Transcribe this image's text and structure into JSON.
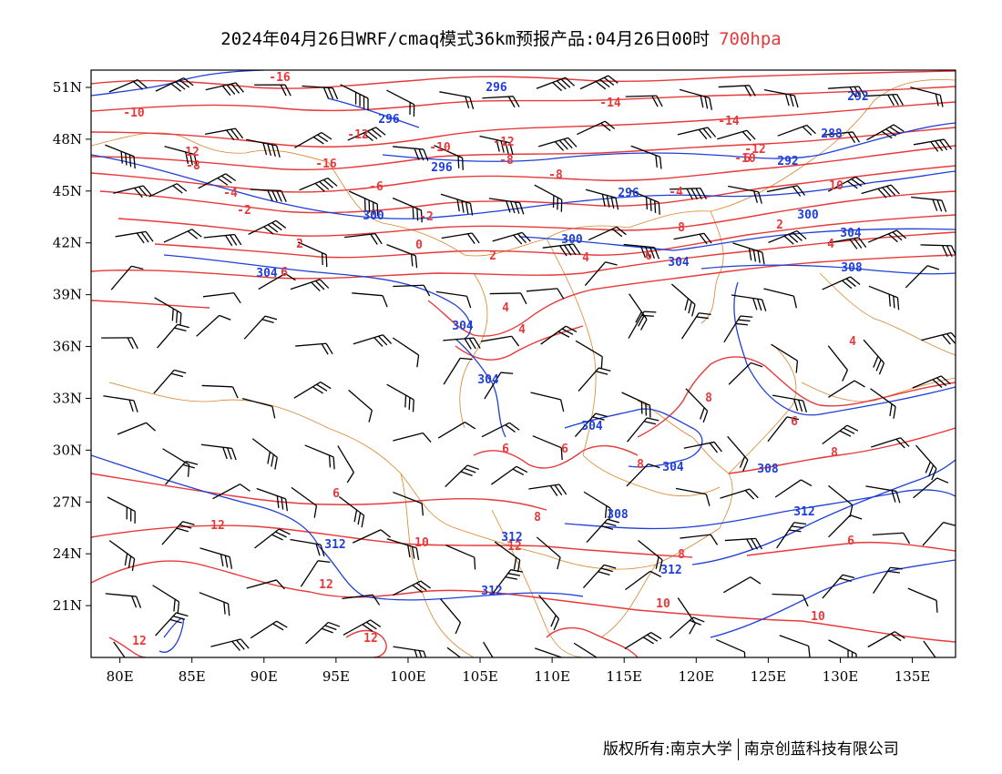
{
  "title": {
    "main": "2024年04月26日WRF/cmaq模式36km预报产品:04月26日00时",
    "level": "700hpa"
  },
  "colors": {
    "temperature": "#e8393a",
    "height": "#1f3fd8",
    "boundary": "#d9842a",
    "wind": "#000000",
    "level_text": "#e8393a"
  },
  "axes": {
    "lon_ticks": [
      "80E",
      "85E",
      "90E",
      "95E",
      "100E",
      "105E",
      "110E",
      "115E",
      "120E",
      "125E",
      "130E",
      "135E"
    ],
    "lat_ticks": [
      "51N",
      "48N",
      "45N",
      "42N",
      "39N",
      "36N",
      "33N",
      "30N",
      "27N",
      "24N",
      "21N"
    ]
  },
  "contour_labels": {
    "temperature": [
      "-16",
      "-10",
      "-8",
      "-4",
      "-2",
      "2",
      "6",
      "-12",
      "-16",
      "-12",
      "-14",
      "-10",
      "-8",
      "-14",
      "-12",
      "-10",
      "-8",
      "-6",
      "-4",
      "-2",
      "0",
      "2",
      "4",
      "6",
      "8",
      "2",
      "4",
      "4",
      "8",
      "6",
      "4",
      "4",
      "6",
      "6",
      "8",
      "6",
      "8",
      "12",
      "12",
      "10",
      "12",
      "10",
      "12",
      "12",
      "10",
      "8",
      "6",
      "8",
      "6",
      "12",
      "10"
    ],
    "height": [
      "296",
      "296",
      "296",
      "292",
      "300",
      "300",
      "296",
      "292",
      "288",
      "304",
      "304",
      "300",
      "304",
      "308",
      "304",
      "304",
      "304",
      "304",
      "308",
      "312",
      "308",
      "312",
      "312",
      "312",
      "312"
    ]
  },
  "footer": {
    "left": "版权所有:南京大学",
    "right": "南京创蓝科技有限公司"
  }
}
